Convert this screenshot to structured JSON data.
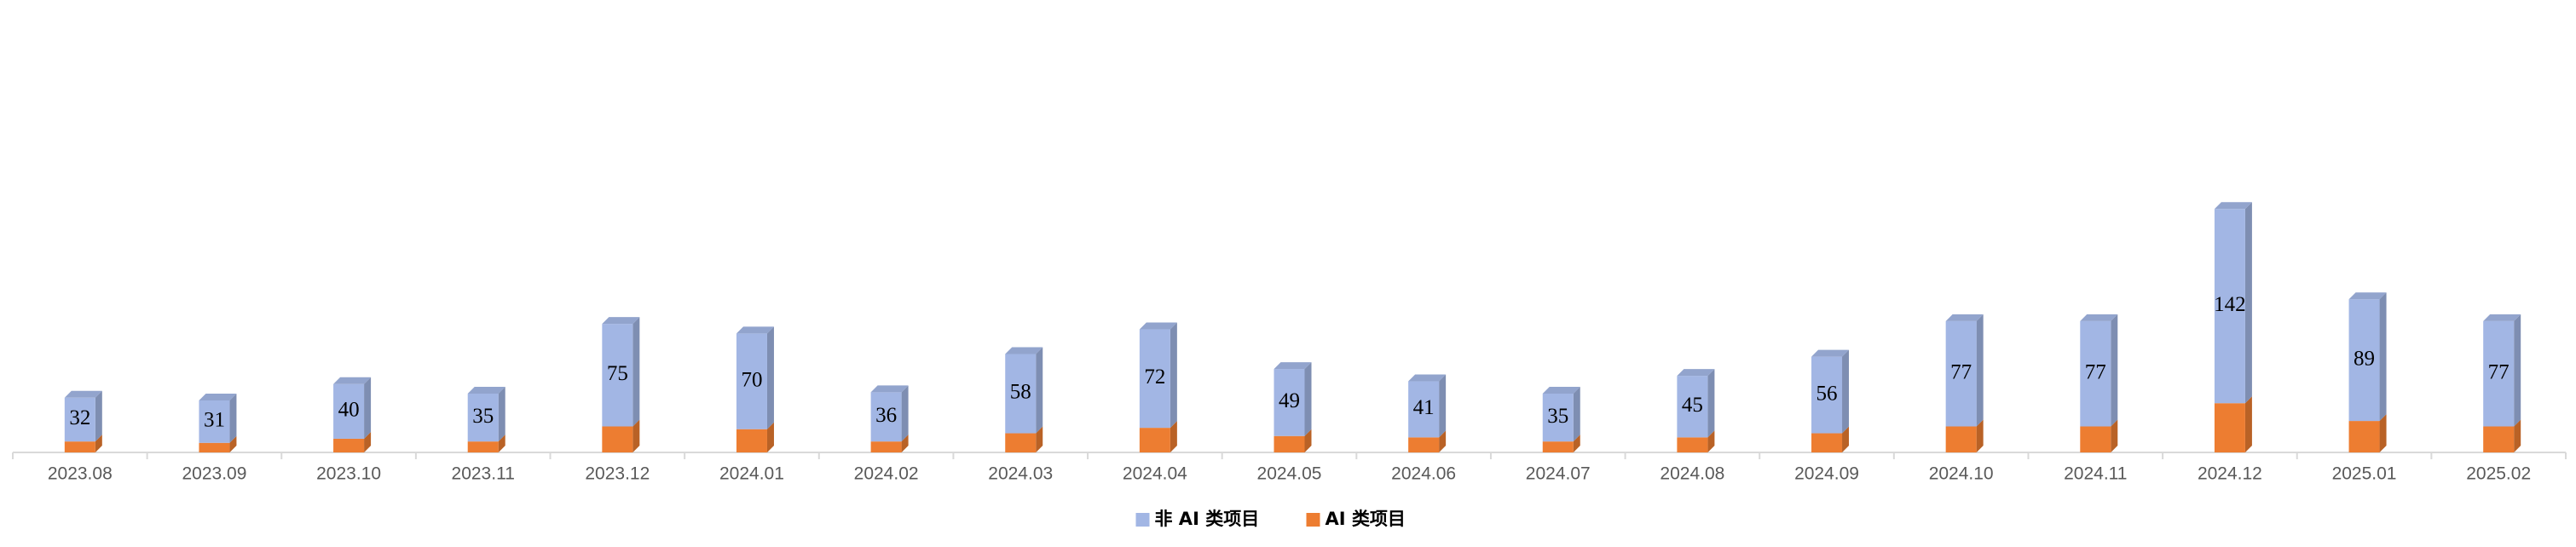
{
  "chart_data": {
    "type": "bar",
    "stacked": true,
    "legend": "bottom",
    "categories": [
      "2023.08",
      "2023.09",
      "2023.10",
      "2023.11",
      "2023.12",
      "2024.01",
      "2024.02",
      "2024.03",
      "2024.04",
      "2024.05",
      "2024.06",
      "2024.07",
      "2024.08",
      "2024.09",
      "2024.10",
      "2024.11",
      "2024.12",
      "2025.01",
      "2025.02"
    ],
    "series": [
      {
        "name": "AI 类项目",
        "color": "#ed7d31",
        "values": [
          8,
          7,
          10,
          8,
          19,
          17,
          8,
          14,
          18,
          12,
          11,
          8,
          11,
          14,
          19,
          19,
          36,
          23,
          19
        ]
      },
      {
        "name": "非 AI 类项目",
        "color": "#a2b6e4",
        "values": [
          32,
          31,
          40,
          35,
          75,
          70,
          36,
          58,
          72,
          49,
          41,
          35,
          45,
          56,
          77,
          77,
          142,
          89,
          77
        ]
      }
    ],
    "ylim": [
      0,
      200
    ]
  }
}
